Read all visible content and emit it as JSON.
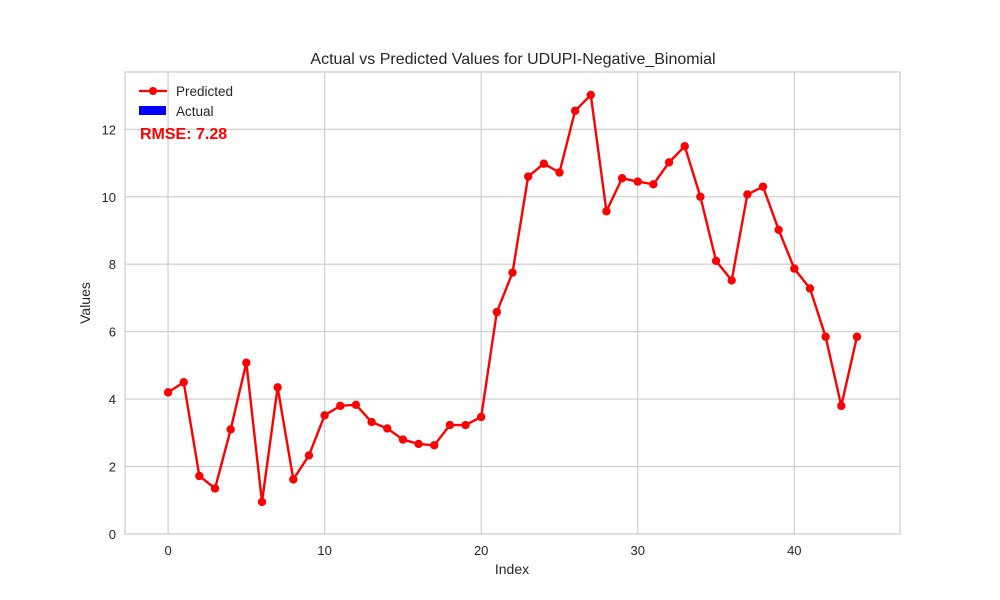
{
  "chart_data": {
    "type": "line",
    "title": "Actual vs Predicted Values for UDUPI-Negative_Binomial",
    "xlabel": "Index",
    "ylabel": "Values",
    "xlim": [
      -2.75,
      46.75
    ],
    "ylim": [
      0,
      13.7
    ],
    "xticks": [
      0,
      10,
      20,
      30,
      40
    ],
    "yticks": [
      0,
      2,
      4,
      6,
      8,
      10,
      12
    ],
    "grid": true,
    "legend_position": "top-left",
    "annotation": "RMSE: 7.28",
    "annotation_color": "#ff0000",
    "series": [
      {
        "name": "Predicted",
        "color": "#ff0000",
        "marker": "circle",
        "x": [
          0,
          1,
          2,
          3,
          4,
          5,
          6,
          7,
          8,
          9,
          10,
          11,
          12,
          13,
          14,
          15,
          16,
          17,
          18,
          19,
          20,
          21,
          22,
          23,
          24,
          25,
          26,
          27,
          28,
          29,
          30,
          31,
          32,
          33,
          34,
          35,
          36,
          37,
          38,
          39,
          40,
          41,
          42,
          43,
          44
        ],
        "values": [
          4.2,
          4.5,
          1.72,
          1.35,
          3.1,
          5.08,
          0.95,
          4.35,
          1.62,
          2.33,
          3.52,
          3.8,
          3.83,
          3.32,
          3.13,
          2.8,
          2.67,
          2.63,
          3.23,
          3.23,
          3.47,
          6.58,
          7.75,
          10.6,
          10.98,
          10.72,
          12.55,
          13.02,
          9.57,
          10.55,
          10.45,
          10.37,
          11.02,
          11.5,
          10.0,
          8.1,
          7.52,
          10.07,
          10.3,
          9.02,
          7.87,
          7.28,
          5.85,
          3.8,
          5.85
        ]
      },
      {
        "name": "Actual",
        "color": "#0000ff",
        "marker": "patch",
        "x": [],
        "values": []
      }
    ]
  }
}
